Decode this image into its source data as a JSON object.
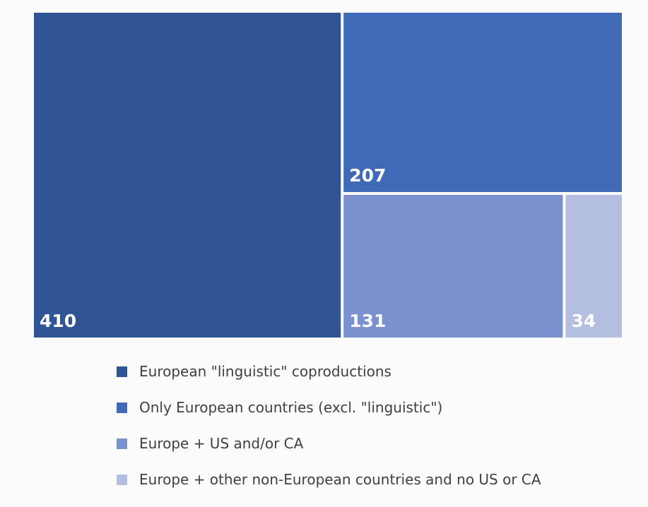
{
  "chart_data": {
    "type": "treemap",
    "title": "",
    "series": [
      {
        "name": "European \"linguistic\" coproductions",
        "value": 410,
        "color": "#2f5597"
      },
      {
        "name": "Only European countries (excl. \"linguistic\")",
        "value": 207,
        "color": "#3f6ab8"
      },
      {
        "name": "Europe + US and/or CA",
        "value": 131,
        "color": "#7a91d0"
      },
      {
        "name": "Europe + other non-European countries and no US or CA",
        "value": 34,
        "color": "#b4bee0"
      }
    ],
    "legend_position": "bottom"
  }
}
